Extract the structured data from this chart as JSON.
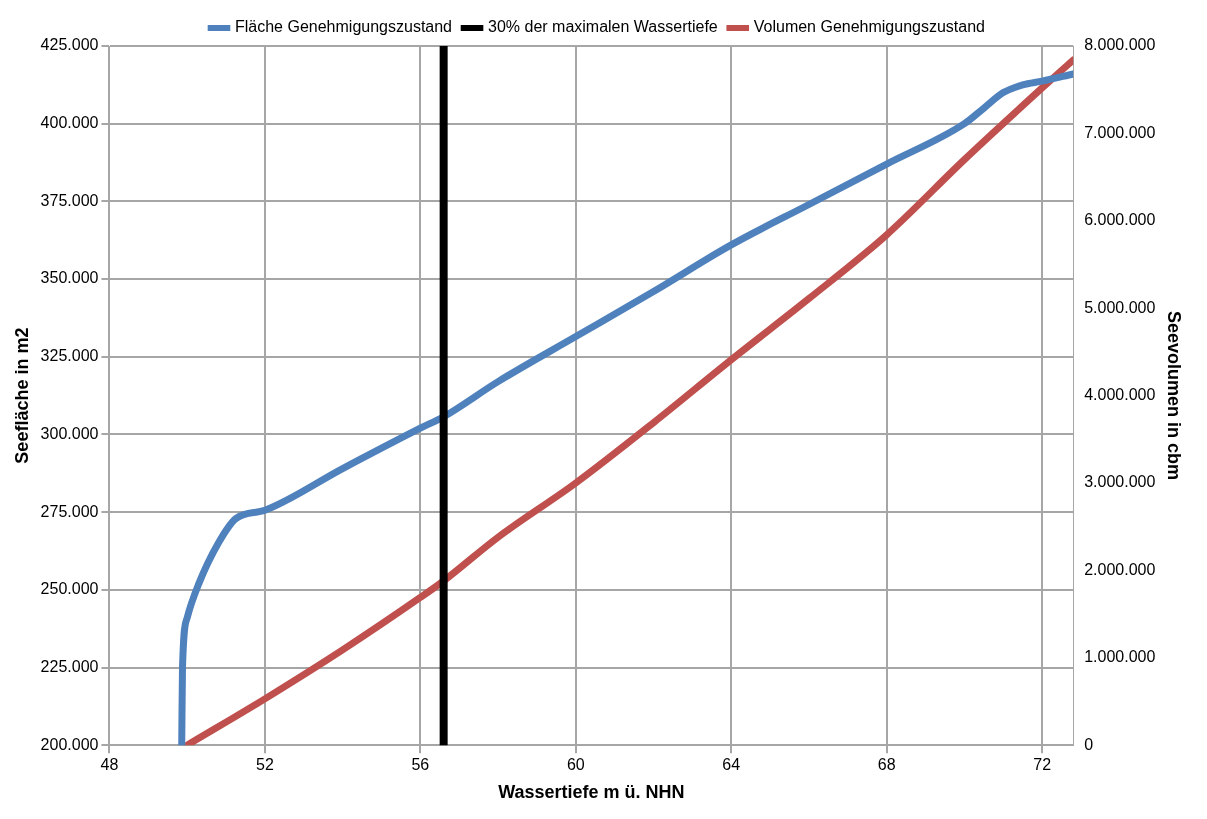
{
  "chart_data": {
    "type": "line",
    "xlabel": "Wassertiefe m ü. NHN",
    "ylabel": "Seefläche in m2",
    "y2label": "Seevolumen in cbm",
    "xlim": [
      48,
      72.8
    ],
    "xticks": [
      48,
      52,
      56,
      60,
      64,
      68,
      72
    ],
    "ylim": [
      200000,
      425000
    ],
    "yticks": [
      {
        "value": 200000,
        "label": "200.000"
      },
      {
        "value": 225000,
        "label": "225.000"
      },
      {
        "value": 250000,
        "label": "250.000"
      },
      {
        "value": 275000,
        "label": "275.000"
      },
      {
        "value": 300000,
        "label": "300.000"
      },
      {
        "value": 325000,
        "label": "325.000"
      },
      {
        "value": 350000,
        "label": "350.000"
      },
      {
        "value": 375000,
        "label": "375.000"
      },
      {
        "value": 400000,
        "label": "400.000"
      },
      {
        "value": 425000,
        "label": "425.000"
      }
    ],
    "y2lim": [
      0,
      8000000
    ],
    "y2ticks": [
      0,
      {
        "value": 1000000,
        "label": "1.000.000"
      },
      {
        "value": 2000000,
        "label": "2.000.000"
      },
      {
        "value": 3000000,
        "label": "3.000.000"
      },
      {
        "value": 4000000,
        "label": "4.000.000"
      },
      {
        "value": 5000000,
        "label": "5.000.000"
      },
      {
        "value": 6000000,
        "label": "6.000.000"
      },
      {
        "value": 7000000,
        "label": "7.000.000"
      },
      {
        "value": 8000000,
        "label": "8.000.000"
      }
    ],
    "grid": true,
    "legend": "top",
    "marker": "none",
    "line_style": "solid",
    "series": [
      {
        "name": "Fläche Genehmigungszustand",
        "color": "#4f81bd",
        "x": [
          49.86,
          49.88,
          50.0,
          50.3,
          50.8,
          51.26,
          52,
          54,
          56,
          56.6,
          58,
          60,
          62,
          64,
          66,
          68,
          70,
          70.5,
          71,
          71.5,
          72,
          72.8
        ],
        "values": [
          200000,
          225000,
          241000,
          252000,
          265000,
          273000,
          275600,
          289000,
          302000,
          305700,
          317000,
          331500,
          346000,
          361000,
          374000,
          387000,
          400000,
          405000,
          410000,
          412500,
          413700,
          416000
        ]
      },
      {
        "name": "Volumen Genehmigungszustand",
        "color": "#c0504d",
        "axis": "y2",
        "x": [
          50.0,
          52,
          54,
          56,
          56.6,
          58,
          60,
          62,
          64,
          66,
          68,
          70,
          72,
          72.8
        ],
        "values": [
          0,
          530000,
          1090000,
          1690000,
          1880000,
          2380000,
          3000000,
          3690000,
          4410000,
          5110000,
          5840000,
          6700000,
          7520000,
          7840000
        ]
      }
    ],
    "ref_lines": [
      {
        "axis": "x",
        "value": 56.6,
        "label": "30% der maximalen Wassertiefe",
        "color": "#000000"
      }
    ]
  }
}
